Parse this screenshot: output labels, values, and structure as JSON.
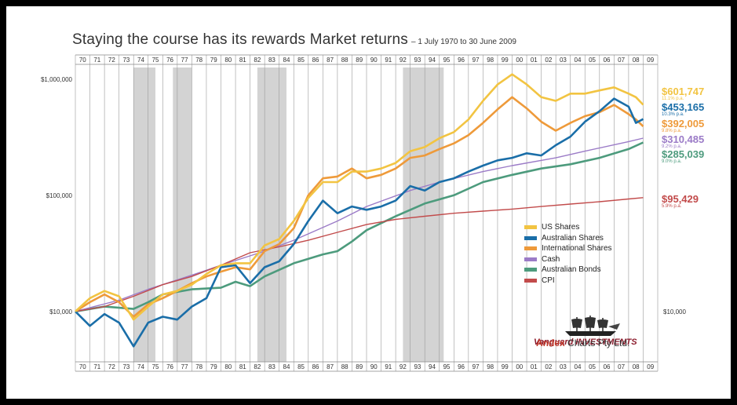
{
  "title": {
    "main": "Staying the course has its rewards Market returns",
    "sub": "– 1 July 1970 to 30 June 2009"
  },
  "chart_data": {
    "type": "line",
    "title": "Staying the course has its rewards Market returns",
    "subtitle": "– 1 July 1970 to 30 June 2009",
    "scale": "log",
    "y_ticks": [
      "$1,000,000",
      "$100,000",
      "$10,000"
    ],
    "y_tick_values": [
      1000000,
      100000,
      10000
    ],
    "right_tick": "$10,000",
    "ylim": [
      3300,
      1300000
    ],
    "x_ticks": [
      "70",
      "71",
      "72",
      "73",
      "74",
      "75",
      "76",
      "77",
      "78",
      "79",
      "80",
      "81",
      "82",
      "83",
      "84",
      "85",
      "86",
      "87",
      "88",
      "89",
      "90",
      "91",
      "92",
      "93",
      "94",
      "95",
      "96",
      "97",
      "98",
      "99",
      "00",
      "01",
      "02",
      "03",
      "04",
      "05",
      "06",
      "07",
      "08",
      "09"
    ],
    "shaded_periods": [
      [
        4,
        5.5
      ],
      [
        6.7,
        8.0
      ],
      [
        12.5,
        14.5
      ],
      [
        22.5,
        25.3
      ]
    ],
    "legend_placement": "bottom-right",
    "series": [
      {
        "name": "US Shares",
        "color": "#f2c442",
        "final": "$601,747",
        "rate": "11.1% p.a.",
        "x": [
          0,
          1,
          2,
          3,
          4,
          5,
          6,
          7,
          8,
          9,
          10,
          11,
          12,
          13,
          14,
          15,
          16,
          17,
          18,
          19,
          20,
          21,
          22,
          23,
          24,
          25,
          26,
          27,
          28,
          29,
          30,
          31,
          32,
          33,
          34,
          35,
          36,
          37,
          38,
          38.5,
          39
        ],
        "y": [
          10000,
          13000,
          15000,
          13500,
          8500,
          11000,
          14000,
          15000,
          17000,
          21000,
          25000,
          26000,
          26000,
          37000,
          42000,
          60000,
          95000,
          130000,
          130000,
          160000,
          160000,
          170000,
          190000,
          240000,
          260000,
          310000,
          350000,
          450000,
          650000,
          900000,
          1100000,
          900000,
          700000,
          650000,
          750000,
          750000,
          800000,
          850000,
          750000,
          700000,
          601747
        ]
      },
      {
        "name": "Australian Shares",
        "color": "#1a6ea8",
        "final": "$453,165",
        "rate": "10.3% p.a.",
        "x": [
          0,
          1,
          2,
          3,
          4,
          5,
          6,
          7,
          8,
          9,
          10,
          11,
          12,
          13,
          14,
          15,
          16,
          17,
          18,
          19,
          20,
          21,
          22,
          23,
          24,
          25,
          26,
          27,
          28,
          29,
          30,
          31,
          32,
          33,
          34,
          35,
          36,
          37,
          38,
          38.5,
          39
        ],
        "y": [
          10000,
          7500,
          9500,
          8000,
          5000,
          8000,
          9000,
          8500,
          11000,
          13000,
          24000,
          25000,
          17500,
          24000,
          27000,
          38000,
          60000,
          90000,
          70000,
          80000,
          75000,
          80000,
          90000,
          120000,
          110000,
          130000,
          140000,
          160000,
          180000,
          200000,
          210000,
          230000,
          220000,
          270000,
          320000,
          430000,
          530000,
          680000,
          580000,
          420000,
          453165
        ]
      },
      {
        "name": "International Shares",
        "color": "#ee9a3a",
        "final": "$392,005",
        "rate": "9.8% p.a.",
        "x": [
          0,
          1,
          2,
          3,
          4,
          5,
          6,
          7,
          8,
          9,
          10,
          11,
          12,
          13,
          14,
          15,
          16,
          17,
          18,
          19,
          20,
          21,
          22,
          23,
          24,
          25,
          26,
          27,
          28,
          29,
          30,
          31,
          32,
          33,
          34,
          35,
          36,
          37,
          38,
          38.5,
          39
        ],
        "y": [
          10000,
          12000,
          14000,
          12000,
          9000,
          11500,
          13000,
          15000,
          17500,
          20000,
          22000,
          24000,
          23000,
          33000,
          38000,
          52000,
          100000,
          140000,
          145000,
          170000,
          140000,
          150000,
          170000,
          210000,
          220000,
          250000,
          280000,
          330000,
          420000,
          550000,
          700000,
          560000,
          430000,
          360000,
          420000,
          480000,
          520000,
          600000,
          500000,
          450000,
          392005
        ]
      },
      {
        "name": "Cash",
        "color": "#9b7bc7",
        "final": "$310,485",
        "rate": "9.2% p.a.",
        "x": [
          0,
          3,
          5,
          8,
          10,
          13,
          15,
          18,
          20,
          23,
          25,
          28,
          30,
          33,
          35,
          38,
          39
        ],
        "y": [
          10000,
          12500,
          15500,
          20500,
          25000,
          33000,
          41000,
          60000,
          80000,
          110000,
          130000,
          160000,
          180000,
          210000,
          240000,
          290000,
          310485
        ]
      },
      {
        "name": "Australian Bonds",
        "color": "#4d9b7d",
        "final": "$285,039",
        "rate": "9.0% p.a.",
        "x": [
          0,
          2,
          4,
          5,
          6,
          8,
          10,
          11,
          12,
          13,
          15,
          17,
          18,
          19,
          20,
          22,
          24,
          26,
          28,
          30,
          32,
          34,
          36,
          38,
          39
        ],
        "y": [
          10000,
          11000,
          10500,
          12000,
          14000,
          15500,
          16000,
          18000,
          16500,
          20000,
          26000,
          31000,
          33000,
          40000,
          50000,
          66000,
          85000,
          100000,
          130000,
          150000,
          170000,
          185000,
          210000,
          250000,
          285039
        ]
      },
      {
        "name": "CPI",
        "color": "#c24b4b",
        "final": "$95,429",
        "rate": "5.9% p.a.",
        "x": [
          0,
          2,
          4,
          6,
          8,
          10,
          12,
          14,
          16,
          18,
          20,
          22,
          24,
          26,
          28,
          30,
          32,
          34,
          36,
          38,
          39
        ],
        "y": [
          10000,
          11000,
          13500,
          17000,
          20000,
          25000,
          32000,
          36000,
          41000,
          48000,
          56000,
          62000,
          66000,
          70000,
          73000,
          76000,
          80000,
          84000,
          88000,
          93000,
          95429
        ]
      }
    ]
  },
  "logo": {
    "company": "Vanguard INVESTMENTS",
    "andex": "Andex",
    "andex_rest": " Charts Pty Ltd."
  }
}
